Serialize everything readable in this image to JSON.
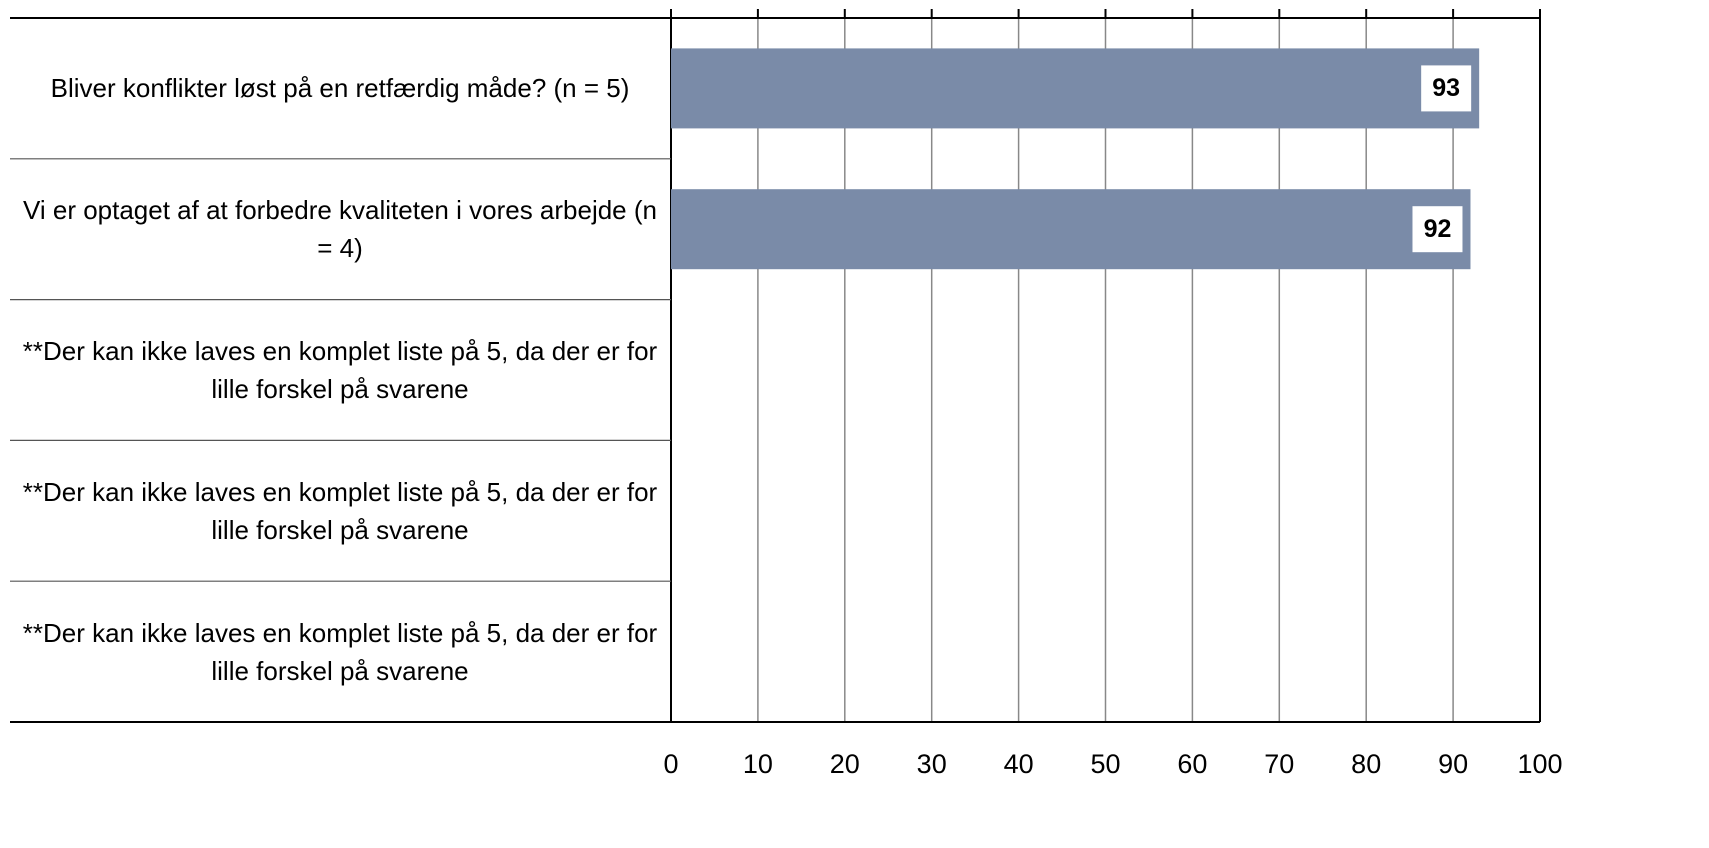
{
  "chart_data": {
    "type": "bar",
    "orientation": "horizontal",
    "categories": [
      "Bliver konflikter løst på en retfærdig måde? (n = 5)",
      "Vi er optaget af at forbedre kvaliteten i vores arbejde (n = 4)",
      "**Der kan ikke laves en komplet liste på 5, da der er for lille forskel på svarene",
      "**Der kan ikke laves en komplet liste på 5, da der er for lille forskel på svarene",
      "**Der kan ikke laves en komplet liste på 5, da der er for lille forskel på svarene"
    ],
    "values": [
      93,
      92,
      null,
      null,
      null
    ],
    "color": "#7a8ba8",
    "xlim": [
      0,
      100
    ],
    "xticks": [
      0,
      10,
      20,
      30,
      40,
      50,
      60,
      70,
      80,
      90,
      100
    ],
    "grid": true
  }
}
